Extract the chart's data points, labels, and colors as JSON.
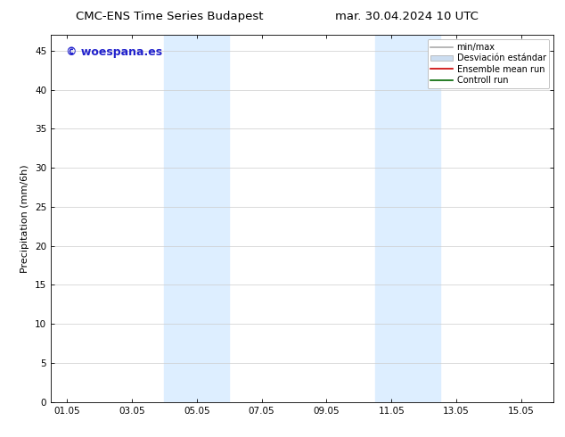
{
  "title_left": "CMC-ENS Time Series Budapest",
  "title_right": "mar. 30.04.2024 10 UTC",
  "ylabel": "Precipitation (mm/6h)",
  "ylim": [
    0,
    47
  ],
  "yticks": [
    0,
    5,
    10,
    15,
    20,
    25,
    30,
    35,
    40,
    45
  ],
  "xtick_labels": [
    "01.05",
    "03.05",
    "05.05",
    "07.05",
    "09.05",
    "11.05",
    "13.05",
    "15.05"
  ],
  "xtick_positions": [
    1,
    3,
    5,
    7,
    9,
    11,
    13,
    15
  ],
  "xlim": [
    0.5,
    16.0
  ],
  "shaded_regions": [
    {
      "xstart": 4.0,
      "xend": 5.0,
      "color": "#ddeeff"
    },
    {
      "xstart": 5.0,
      "xend": 6.0,
      "color": "#ddeeff"
    },
    {
      "xstart": 10.5,
      "xend": 11.5,
      "color": "#ddeeff"
    },
    {
      "xstart": 11.5,
      "xend": 12.5,
      "color": "#ddeeff"
    }
  ],
  "watermark": "© woespana.es",
  "watermark_color": "#2222cc",
  "legend_entries": [
    {
      "label": "min/max",
      "color": "#aaaaaa",
      "lw": 1.2,
      "type": "line"
    },
    {
      "label": "Desviación estándar",
      "color": "#ccddf0",
      "lw": 8,
      "type": "patch"
    },
    {
      "label": "Ensemble mean run",
      "color": "#cc0000",
      "lw": 1.2,
      "type": "line"
    },
    {
      "label": "Controll run",
      "color": "#006600",
      "lw": 1.2,
      "type": "line"
    }
  ],
  "bg_color": "#ffffff",
  "plot_bg_color": "#ffffff",
  "grid_color": "#cccccc",
  "font_size": 7.5,
  "title_fontsize": 9.5,
  "watermark_fontsize": 9,
  "ylabel_fontsize": 8,
  "legend_fontsize": 7
}
